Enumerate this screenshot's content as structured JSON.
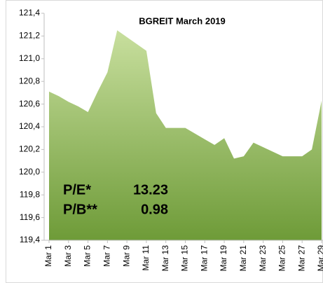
{
  "chart_data": {
    "type": "area",
    "title": "BGREIT March 2019",
    "categories": [
      "Mar 1",
      null,
      "Mar 3",
      null,
      "Mar 5",
      null,
      "Mar 7",
      null,
      "Mar 9",
      null,
      "Mar 11",
      null,
      "Mar 13",
      null,
      "Mar 15",
      null,
      "Mar 17",
      null,
      "Mar 19",
      null,
      "Mar 21",
      null,
      "Mar 23",
      null,
      "Mar 25",
      null,
      "Mar 27",
      null,
      "Mar 29"
    ],
    "values": [
      120.71,
      120.67,
      120.62,
      120.58,
      120.53,
      120.71,
      120.88,
      121.25,
      121.19,
      121.13,
      121.07,
      120.52,
      120.39,
      120.39,
      120.39,
      120.34,
      120.29,
      120.24,
      120.3,
      120.12,
      120.14,
      120.26,
      120.22,
      120.18,
      120.14,
      120.14,
      120.14,
      120.2,
      120.63
    ],
    "color_top": "#c8df9e",
    "color_bottom": "#6e9b38",
    "ylim": [
      119.4,
      121.4
    ],
    "yticks": [
      {
        "value": 119.4,
        "label": "119,4"
      },
      {
        "value": 119.6,
        "label": "119,6"
      },
      {
        "value": 119.8,
        "label": "119,8"
      },
      {
        "value": 120.0,
        "label": "120,0"
      },
      {
        "value": 120.2,
        "label": "120,2"
      },
      {
        "value": 120.4,
        "label": "120,4"
      },
      {
        "value": 120.6,
        "label": "120,6"
      },
      {
        "value": 120.8,
        "label": "120,8"
      },
      {
        "value": 121.0,
        "label": "121,0"
      },
      {
        "value": 121.2,
        "label": "121,2"
      },
      {
        "value": 121.4,
        "label": "121,4"
      }
    ],
    "annotations": [
      "P/E*",
      "13.23",
      "P/B**",
      "0.98"
    ]
  }
}
